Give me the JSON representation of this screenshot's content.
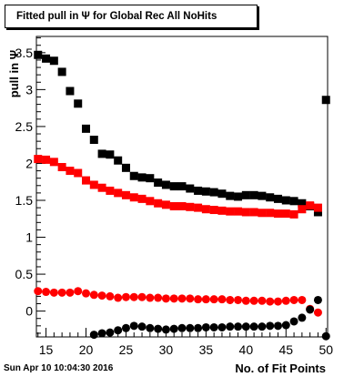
{
  "chart_data": {
    "type": "scatter",
    "title": "Fitted pull in  Ψ  for Global Rec All NoHits",
    "xlabel": "No. of Fit Points",
    "ylabel": "pull in  Ψ",
    "xlim": [
      13.8,
      50.2
    ],
    "ylim": [
      -0.35,
      3.72
    ],
    "xticks": [
      15,
      20,
      25,
      30,
      35,
      40,
      45,
      50
    ],
    "yticks": [
      0,
      0.5,
      1,
      1.5,
      2,
      2.5,
      3,
      3.5
    ],
    "series": [
      {
        "marker": "square",
        "color": "#000000",
        "x": [
          14,
          15,
          16,
          17,
          18,
          19,
          20,
          21,
          22,
          23,
          24,
          25,
          26,
          27,
          28,
          29,
          30,
          31,
          32,
          33,
          34,
          35,
          36,
          37,
          38,
          39,
          40,
          41,
          42,
          43,
          44,
          45,
          46,
          47,
          48,
          49,
          50
        ],
        "y": [
          3.47,
          3.42,
          3.39,
          3.24,
          2.98,
          2.81,
          2.47,
          2.32,
          2.13,
          2.12,
          2.04,
          1.94,
          1.83,
          1.81,
          1.8,
          1.74,
          1.71,
          1.69,
          1.69,
          1.66,
          1.63,
          1.62,
          1.61,
          1.59,
          1.56,
          1.55,
          1.57,
          1.57,
          1.56,
          1.54,
          1.52,
          1.5,
          1.49,
          1.46,
          1.42,
          1.34,
          2.86
        ]
      },
      {
        "marker": "square",
        "color": "#ff0000",
        "x": [
          14,
          15,
          16,
          17,
          18,
          19,
          20,
          21,
          22,
          23,
          24,
          25,
          26,
          27,
          28,
          29,
          30,
          31,
          32,
          33,
          34,
          35,
          36,
          37,
          38,
          39,
          40,
          41,
          42,
          43,
          44,
          45,
          46,
          47,
          48,
          49
        ],
        "y": [
          2.06,
          2.05,
          2.02,
          1.95,
          1.9,
          1.87,
          1.77,
          1.71,
          1.67,
          1.63,
          1.6,
          1.57,
          1.54,
          1.52,
          1.49,
          1.46,
          1.44,
          1.42,
          1.42,
          1.41,
          1.4,
          1.38,
          1.37,
          1.36,
          1.35,
          1.35,
          1.34,
          1.34,
          1.33,
          1.33,
          1.32,
          1.32,
          1.31,
          1.38,
          1.43,
          1.4
        ]
      },
      {
        "marker": "circle",
        "color": "#ff0000",
        "x": [
          14,
          15,
          16,
          17,
          18,
          19,
          20,
          21,
          22,
          23,
          24,
          25,
          26,
          27,
          28,
          29,
          30,
          31,
          32,
          33,
          34,
          35,
          36,
          37,
          38,
          39,
          40,
          41,
          42,
          43,
          44,
          45,
          46,
          47,
          48,
          49
        ],
        "y": [
          0.27,
          0.26,
          0.25,
          0.25,
          0.25,
          0.27,
          0.24,
          0.22,
          0.21,
          0.2,
          0.18,
          0.19,
          0.19,
          0.19,
          0.18,
          0.18,
          0.17,
          0.17,
          0.17,
          0.17,
          0.16,
          0.16,
          0.16,
          0.16,
          0.15,
          0.15,
          0.14,
          0.14,
          0.14,
          0.13,
          0.13,
          0.14,
          0.15,
          0.15,
          0.03,
          -0.02
        ]
      },
      {
        "marker": "circle",
        "color": "#000000",
        "x": [
          21,
          22,
          23,
          24,
          25,
          26,
          27,
          28,
          29,
          30,
          31,
          32,
          33,
          34,
          35,
          36,
          37,
          38,
          39,
          40,
          41,
          42,
          43,
          44,
          45,
          46,
          47,
          48,
          49,
          50
        ],
        "y": [
          -0.32,
          -0.3,
          -0.29,
          -0.26,
          -0.23,
          -0.2,
          -0.21,
          -0.23,
          -0.24,
          -0.25,
          -0.24,
          -0.23,
          -0.23,
          -0.23,
          -0.22,
          -0.22,
          -0.22,
          -0.21,
          -0.21,
          -0.21,
          -0.21,
          -0.21,
          -0.2,
          -0.2,
          -0.19,
          -0.14,
          -0.09,
          0.02,
          0.15,
          -0.34
        ]
      }
    ]
  },
  "footer": {
    "timestamp": "Sun Apr 10 10:04:30 2016"
  }
}
